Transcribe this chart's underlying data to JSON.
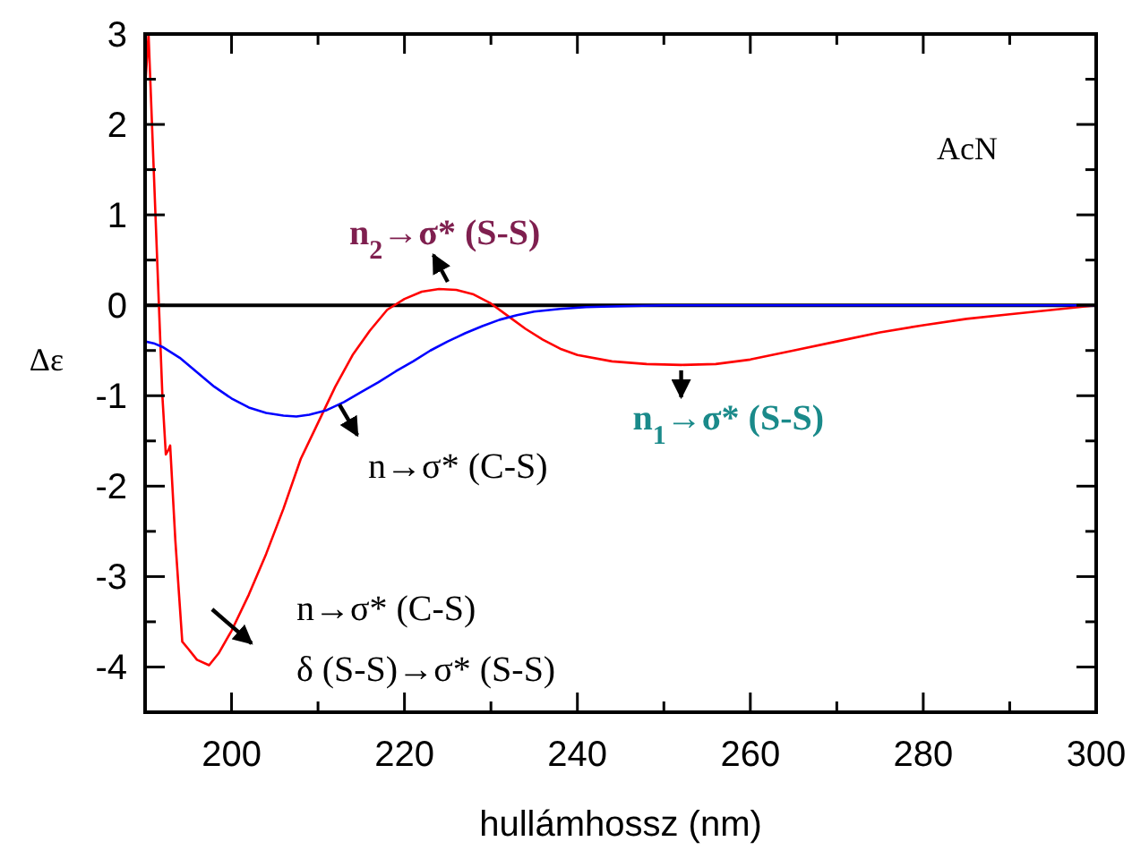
{
  "chart_data": {
    "type": "line",
    "xlabel": "hullámhossz (nm)",
    "ylabel": "Δε",
    "xlim": [
      190,
      300
    ],
    "ylim": [
      -4.5,
      3
    ],
    "xticks": [
      {
        "value": 190,
        "label": null
      },
      200,
      {
        "value": 210,
        "label": null
      },
      220,
      {
        "value": 230,
        "label": null
      },
      240,
      {
        "value": 250,
        "label": null
      },
      260,
      {
        "value": 270,
        "label": null
      },
      280,
      {
        "value": 290,
        "label": null
      },
      300
    ],
    "yticks": [
      {
        "value": -4.5,
        "label": null
      },
      -4,
      {
        "value": -3.5,
        "label": null
      },
      -3,
      {
        "value": -2.5,
        "label": null
      },
      -2,
      {
        "value": -1.5,
        "label": null
      },
      -1,
      {
        "value": -0.5,
        "label": null
      },
      0,
      {
        "value": 0.5,
        "label": null
      },
      1,
      {
        "value": 1.5,
        "label": null
      },
      2,
      {
        "value": 2.5,
        "label": null
      },
      3
    ],
    "grid": false,
    "marker": "none",
    "line_style": "solid",
    "ref_lines": [
      {
        "axis": "y",
        "value": 0,
        "color": "#000000"
      }
    ],
    "series": [
      {
        "color": "#ff0000",
        "x": [
          190,
          190.4,
          190.8,
          191.6,
          192,
          192.4,
          192.7,
          192.9,
          193.5,
          194.3,
          195,
          196,
          197.4,
          198.5,
          200,
          202,
          204,
          206,
          208,
          210,
          212,
          214,
          216,
          218,
          220,
          222,
          224,
          226,
          228,
          230,
          232,
          234,
          236,
          238,
          240,
          244,
          248,
          252,
          256,
          260,
          265,
          270,
          275,
          280,
          285,
          290,
          295,
          300
        ],
        "values": [
          2.4,
          3.0,
          2.0,
          0,
          -1.0,
          -1.65,
          -1.6,
          -1.55,
          -2.6,
          -3.72,
          -3.8,
          -3.92,
          -3.98,
          -3.85,
          -3.6,
          -3.2,
          -2.75,
          -2.25,
          -1.7,
          -1.3,
          -0.9,
          -0.55,
          -0.28,
          -0.05,
          0.07,
          0.15,
          0.18,
          0.17,
          0.12,
          0.02,
          -0.12,
          -0.26,
          -0.38,
          -0.48,
          -0.55,
          -0.62,
          -0.65,
          -0.66,
          -0.65,
          -0.6,
          -0.5,
          -0.4,
          -0.3,
          -0.22,
          -0.15,
          -0.1,
          -0.05,
          0
        ]
      },
      {
        "color": "#0000ff",
        "x": [
          190,
          191,
          192,
          194,
          196,
          198,
          200,
          202,
          204,
          206,
          207.5,
          209,
          211,
          213,
          215,
          217,
          219,
          221,
          223,
          225,
          227,
          229,
          231,
          233,
          235,
          238,
          241,
          245,
          250,
          300
        ],
        "values": [
          -0.4,
          -0.42,
          -0.46,
          -0.58,
          -0.74,
          -0.9,
          -1.03,
          -1.13,
          -1.19,
          -1.22,
          -1.23,
          -1.21,
          -1.16,
          -1.07,
          -0.96,
          -0.85,
          -0.73,
          -0.62,
          -0.5,
          -0.4,
          -0.31,
          -0.23,
          -0.16,
          -0.11,
          -0.07,
          -0.04,
          -0.02,
          -0.01,
          0,
          0
        ]
      }
    ],
    "annotations": [
      "AcN",
      {
        "text": "n$_{2}$→σ* (S-S)",
        "x": 225,
        "y": 0.18
      },
      {
        "text": "n→σ* (C-S)",
        "x": 210,
        "y": -1.2
      },
      {
        "text": "n$_{1}$→σ* (S-S)",
        "x": 252,
        "y": -0.66
      },
      {
        "text": "n→σ* (C-S)\nδ (S-S)→σ* (S-S)",
        "x": 199,
        "y": -3.6
      }
    ]
  }
}
